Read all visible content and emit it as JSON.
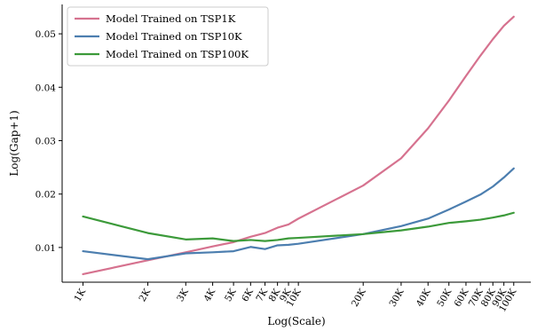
{
  "chart_data": {
    "type": "line",
    "title": "",
    "xlabel": "Log(Scale)",
    "ylabel": "Log(Gap+1)",
    "x_scale": "log",
    "x": [
      1000,
      2000,
      3000,
      4000,
      5000,
      6000,
      7000,
      8000,
      9000,
      10000,
      20000,
      30000,
      40000,
      50000,
      60000,
      70000,
      80000,
      90000,
      100000
    ],
    "x_tick_labels": [
      "1K",
      "2K",
      "3K",
      "4K",
      "5K",
      "6K",
      "7K",
      "8K",
      "9K",
      "10K",
      "20K",
      "30K",
      "40K",
      "50K",
      "60K",
      "70K",
      "80K",
      "90K",
      "100K"
    ],
    "xlim": [
      800,
      120000
    ],
    "ylim": [
      0.0035,
      0.0555
    ],
    "y_ticks": [
      0.01,
      0.02,
      0.03,
      0.04,
      0.05
    ],
    "y_tick_labels": [
      "0.01",
      "0.02",
      "0.03",
      "0.04",
      "0.05"
    ],
    "legend_position": "top-left",
    "grid": false,
    "series": [
      {
        "name": "Model Trained on TSP1K",
        "color": "#d6728f",
        "values": [
          0.005,
          0.0076,
          0.0091,
          0.0102,
          0.011,
          0.012,
          0.0127,
          0.0137,
          0.0143,
          0.0154,
          0.0216,
          0.0267,
          0.0323,
          0.0375,
          0.0421,
          0.0459,
          0.049,
          0.0515,
          0.0532
        ]
      },
      {
        "name": "Model Trained on TSP10K",
        "color": "#4c7eaf",
        "values": [
          0.0093,
          0.0078,
          0.0089,
          0.0091,
          0.0093,
          0.0101,
          0.0097,
          0.0104,
          0.0105,
          0.0107,
          0.0125,
          0.014,
          0.0154,
          0.0171,
          0.0186,
          0.0199,
          0.0214,
          0.0231,
          0.0248
        ]
      },
      {
        "name": "Model Trained on TSP100K",
        "color": "#3c9a3a",
        "values": [
          0.0158,
          0.0127,
          0.0115,
          0.0117,
          0.0112,
          0.0114,
          0.0112,
          0.0114,
          0.0117,
          0.0118,
          0.0125,
          0.0132,
          0.0139,
          0.0146,
          0.0149,
          0.0152,
          0.0156,
          0.016,
          0.0165
        ]
      }
    ]
  }
}
